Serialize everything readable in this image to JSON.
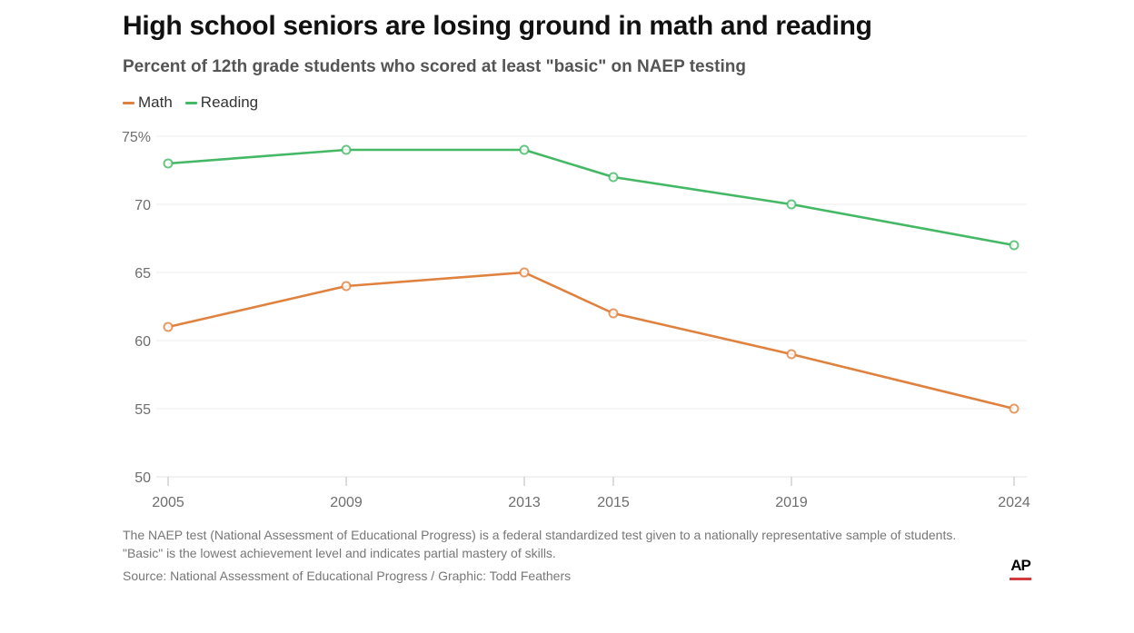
{
  "header": {
    "title": "High school seniors are losing ground in math and reading",
    "subtitle": "Percent of 12th grade students who scored at least \"basic\" on NAEP testing"
  },
  "legend": [
    {
      "label": "Math",
      "color": "#e0823f"
    },
    {
      "label": "Reading",
      "color": "#45b865"
    }
  ],
  "chart_data": {
    "type": "line",
    "title": "High school seniors are losing ground in math and reading",
    "subtitle": "Percent of 12th grade students who scored at least \"basic\" on NAEP testing",
    "xlabel": "",
    "ylabel": "",
    "x": [
      2005,
      2009,
      2013,
      2015,
      2019,
      2024
    ],
    "x_tick_labels": [
      "2005",
      "2009",
      "2013",
      "2015",
      "2019",
      "2024"
    ],
    "xlim": [
      2005,
      2024
    ],
    "ylim": [
      50,
      75
    ],
    "y_ticks": [
      50,
      55,
      60,
      65,
      70,
      75
    ],
    "y_tick_labels": [
      "50",
      "55",
      "60",
      "65",
      "70",
      "75%"
    ],
    "grid": true,
    "legend_position": "top-left",
    "series": [
      {
        "name": "Math",
        "color": "#e0823f",
        "values": [
          61,
          64,
          65,
          62,
          59,
          55
        ]
      },
      {
        "name": "Reading",
        "color": "#45b865",
        "values": [
          73,
          74,
          74,
          72,
          70,
          67
        ]
      }
    ]
  },
  "footer": {
    "note": "The NAEP test (National Assessment of Educational Progress) is a federal standardized test given to a nationally representative sample of students. \"Basic\" is the lowest achievement level and indicates partial mastery of skills.",
    "source": "Source: National Assessment of Educational Progress / Graphic: Todd Feathers",
    "logo_text": "AP",
    "logo_accent": "#d13b3b"
  }
}
